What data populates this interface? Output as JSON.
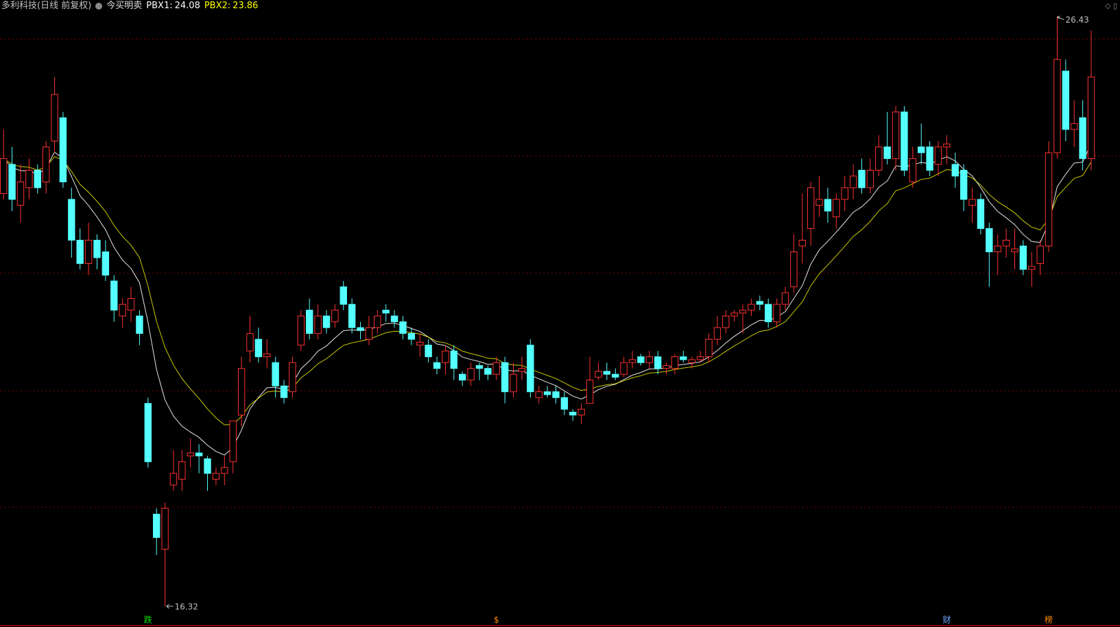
{
  "chart_data": {
    "type": "candlestick",
    "title": "多利科技(日线 前复权)",
    "indicator_name": "今买明卖",
    "indicators": [
      {
        "name": "PBX1:",
        "value": 24.08,
        "color": "#ffffff"
      },
      {
        "name": "PBX2:",
        "value": 23.86,
        "color": "#ffff00"
      }
    ],
    "ylim": [
      16.0,
      26.72
    ],
    "gridlines": [
      26.05,
      24.05,
      22.03,
      20.02,
      18.02
    ],
    "up_color": "#ff3232",
    "down_color": "#54ffff",
    "candles": {
      "open": [
        23.4,
        23.9,
        23.2,
        23.5,
        23.8,
        23.6,
        24.3,
        24.7,
        23.3,
        22.6,
        22.2,
        22.6,
        22.4,
        21.9,
        21.3,
        21.4,
        21.3,
        19.8,
        17.9,
        17.3,
        18.4,
        18.5,
        18.9,
        18.95,
        18.85,
        18.5,
        18.6,
        18.8,
        19.6,
        20.7,
        20.9,
        20.6,
        20.5,
        20.1,
        20.0,
        20.8,
        21.4,
        21.0,
        21.3,
        21.2,
        21.8,
        21.5,
        21.1,
        20.9,
        21.1,
        21.4,
        21.3,
        21.2,
        21.0,
        20.8,
        20.8,
        20.5,
        20.5,
        20.7,
        20.3,
        20.2,
        20.45,
        20.4,
        20.3,
        20.5,
        20.0,
        20.35,
        20.8,
        19.9,
        20.0,
        20.0,
        19.9,
        19.65,
        19.6,
        19.8,
        20.25,
        20.35,
        20.3,
        20.3,
        20.5,
        20.6,
        20.5,
        20.6,
        20.4,
        20.4,
        20.6,
        20.5,
        20.55,
        20.6,
        20.9,
        21.1,
        21.3,
        21.35,
        21.4,
        21.55,
        21.5,
        21.2,
        21.5,
        21.8,
        22.5,
        22.8,
        23.2,
        23.3,
        23.0,
        23.3,
        23.5,
        23.8,
        23.5,
        23.8,
        24.2,
        24.0,
        24.8,
        23.6,
        24.2,
        24.2,
        23.9,
        24.2,
        23.9,
        23.8,
        23.2,
        23.3,
        22.8,
        22.4,
        22.5,
        22.4,
        22.5,
        22.1,
        22.2,
        22.5,
        24.1,
        25.5,
        24.5,
        24.7,
        24.0
      ],
      "high": [
        24.5,
        24.2,
        23.9,
        24.0,
        23.9,
        24.3,
        25.4,
        24.8,
        23.5,
        22.8,
        22.9,
        22.7,
        22.6,
        22.0,
        21.6,
        21.8,
        21.4,
        19.9,
        18.0,
        18.1,
        19.0,
        19.0,
        19.2,
        19.1,
        18.9,
        18.7,
        18.9,
        19.5,
        20.6,
        21.3,
        21.1,
        20.9,
        20.6,
        20.2,
        20.6,
        21.4,
        21.6,
        21.5,
        21.4,
        21.5,
        21.9,
        21.6,
        21.2,
        21.3,
        21.4,
        21.5,
        21.4,
        21.3,
        21.1,
        21.0,
        20.9,
        20.6,
        20.8,
        20.8,
        20.35,
        20.5,
        20.5,
        20.45,
        20.6,
        20.6,
        20.5,
        20.6,
        20.9,
        20.1,
        20.1,
        20.1,
        20.0,
        19.7,
        19.8,
        20.6,
        20.5,
        20.5,
        20.4,
        20.6,
        20.7,
        20.65,
        20.7,
        20.7,
        20.5,
        20.65,
        20.7,
        20.6,
        20.7,
        21.0,
        21.3,
        21.4,
        21.4,
        21.5,
        21.6,
        21.65,
        21.6,
        21.6,
        21.8,
        22.7,
        23.4,
        23.6,
        23.7,
        23.5,
        23.4,
        23.7,
        23.9,
        24.0,
        24.0,
        24.4,
        24.8,
        24.9,
        24.9,
        24.2,
        24.6,
        24.3,
        24.3,
        24.4,
        24.1,
        23.9,
        23.5,
        23.4,
        22.9,
        22.7,
        22.8,
        22.8,
        22.6,
        22.4,
        22.6,
        24.3,
        26.43,
        25.7,
        25.0,
        25.0,
        26.2
      ],
      "low": [
        23.3,
        23.1,
        22.9,
        23.3,
        23.4,
        23.4,
        24.1,
        23.5,
        22.3,
        22.1,
        22.0,
        22.1,
        21.9,
        21.2,
        21.1,
        21.2,
        20.8,
        18.7,
        17.2,
        16.32,
        18.3,
        18.3,
        18.7,
        18.6,
        18.3,
        18.4,
        18.4,
        18.6,
        19.4,
        20.5,
        20.5,
        20.4,
        19.9,
        19.8,
        19.9,
        20.7,
        20.9,
        20.9,
        21.0,
        21.1,
        21.4,
        21.0,
        20.9,
        20.8,
        21.0,
        21.2,
        21.1,
        20.9,
        20.8,
        20.6,
        20.5,
        20.3,
        20.3,
        20.2,
        20.1,
        20.1,
        20.2,
        20.2,
        20.2,
        19.8,
        19.9,
        20.2,
        19.9,
        19.8,
        19.9,
        19.8,
        19.6,
        19.5,
        19.45,
        19.8,
        20.2,
        20.2,
        20.2,
        20.25,
        20.4,
        20.45,
        20.4,
        20.3,
        20.3,
        20.3,
        20.5,
        20.4,
        20.5,
        20.5,
        20.8,
        21.0,
        21.2,
        21.0,
        21.3,
        21.4,
        21.1,
        21.1,
        21.4,
        21.7,
        22.2,
        22.5,
        23.0,
        22.9,
        22.8,
        23.1,
        23.3,
        23.4,
        23.4,
        23.7,
        23.9,
        23.8,
        23.7,
        23.5,
        23.9,
        23.7,
        23.7,
        23.9,
        23.5,
        23.1,
        22.9,
        22.7,
        21.8,
        22.0,
        22.3,
        22.1,
        22.0,
        21.8,
        22.0,
        22.4,
        24.0,
        24.3,
        24.2,
        23.8,
        23.8
      ],
      "close": [
        24.0,
        23.3,
        23.6,
        23.8,
        23.5,
        24.2,
        25.1,
        23.6,
        22.6,
        22.2,
        22.6,
        22.3,
        22.0,
        21.4,
        21.5,
        21.6,
        21.0,
        18.8,
        17.5,
        18.0,
        18.6,
        18.8,
        18.95,
        18.9,
        18.6,
        18.6,
        18.7,
        19.5,
        20.4,
        21.0,
        20.6,
        20.65,
        20.1,
        19.9,
        20.5,
        21.3,
        21.0,
        21.3,
        21.1,
        21.4,
        21.5,
        21.1,
        21.05,
        21.1,
        21.3,
        21.35,
        21.2,
        21.0,
        20.9,
        20.85,
        20.6,
        20.4,
        20.7,
        20.4,
        20.2,
        20.4,
        20.4,
        20.3,
        20.5,
        20.0,
        20.3,
        20.4,
        20.0,
        20.0,
        19.95,
        19.9,
        19.7,
        19.6,
        19.7,
        20.2,
        20.35,
        20.3,
        20.25,
        20.5,
        20.55,
        20.5,
        20.6,
        20.4,
        20.45,
        20.6,
        20.55,
        20.55,
        20.6,
        20.9,
        21.1,
        21.3,
        21.35,
        21.4,
        21.5,
        21.5,
        21.2,
        21.5,
        21.7,
        22.4,
        22.6,
        23.5,
        23.3,
        23.1,
        23.3,
        23.5,
        23.7,
        23.5,
        23.8,
        24.2,
        24.0,
        24.8,
        23.8,
        24.0,
        24.1,
        23.8,
        24.2,
        24.25,
        23.7,
        23.3,
        23.3,
        22.8,
        22.4,
        22.5,
        22.6,
        22.45,
        22.1,
        22.15,
        22.5,
        24.1,
        25.7,
        24.5,
        24.6,
        24.0,
        25.4
      ]
    },
    "max_price": 26.43,
    "min_price": 16.32,
    "events": [
      {
        "candle": 17,
        "label": "跌",
        "color": "#00e000"
      },
      {
        "candle": 58,
        "label": "$",
        "color": "#ff8c00"
      },
      {
        "candle": 111,
        "label": "财",
        "color": "#6fa8ff"
      },
      {
        "candle": 123,
        "label": "榜",
        "color": "#ff8c00"
      }
    ]
  }
}
